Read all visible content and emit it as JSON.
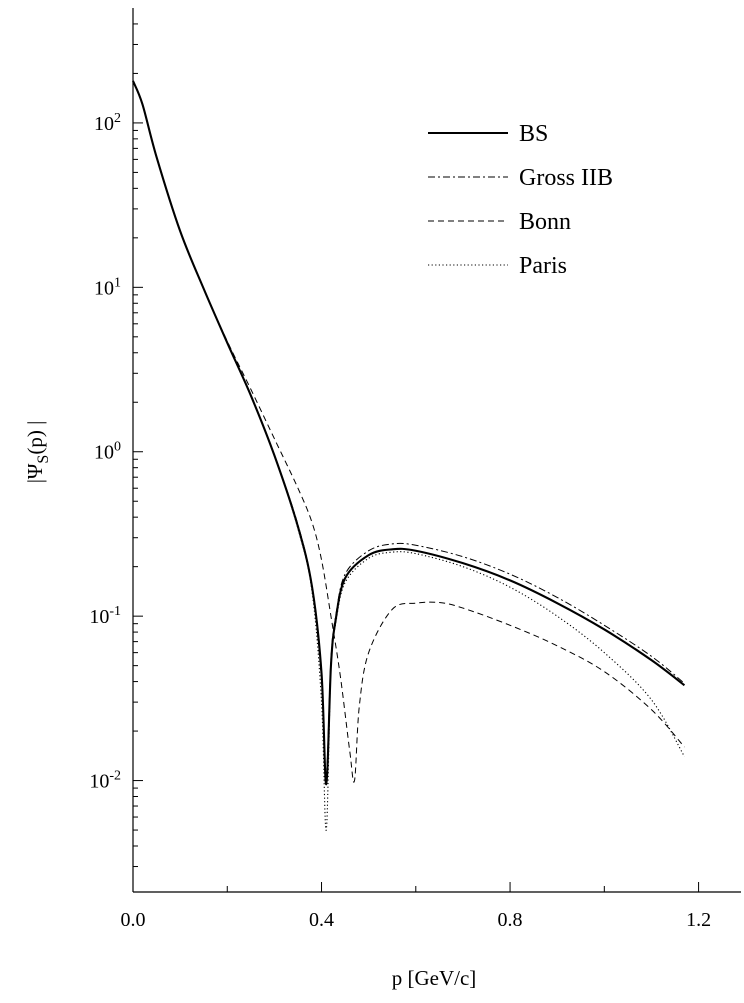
{
  "chart_data": {
    "type": "line",
    "xlabel": "p [GeV/c]",
    "ylabel": "|ΨS(p) |",
    "ylabel_main": "|Ψ",
    "ylabel_sub": "S",
    "ylabel_tail": "(p) |",
    "xscale": "linear",
    "yscale": "log",
    "xlim": [
      0.0,
      1.29
    ],
    "ylim": [
      0.0021,
      500
    ],
    "grid": false,
    "legend_position": "top-right",
    "x_ticks": [
      {
        "value": 0.0,
        "label": "0.0"
      },
      {
        "value": 0.4,
        "label": "0.4"
      },
      {
        "value": 0.8,
        "label": "0.8"
      },
      {
        "value": 1.2,
        "label": "1.2"
      }
    ],
    "y_ticks": [
      {
        "value": 100,
        "base": "10",
        "exp": "2"
      },
      {
        "value": 10,
        "base": "10",
        "exp": "1"
      },
      {
        "value": 1,
        "base": "10",
        "exp": "0"
      },
      {
        "value": 0.1,
        "base": "10",
        "exp": "-1"
      },
      {
        "value": 0.01,
        "base": "10",
        "exp": "-2"
      }
    ],
    "series": [
      {
        "name": "BS",
        "style": "solid",
        "x": [
          0.0,
          0.02,
          0.05,
          0.1,
          0.15,
          0.2,
          0.25,
          0.3,
          0.35,
          0.38,
          0.4,
          0.41,
          0.42,
          0.43,
          0.45,
          0.5,
          0.55,
          0.6,
          0.7,
          0.8,
          0.9,
          1.0,
          1.1,
          1.17
        ],
        "y": [
          180,
          130,
          62,
          22,
          9.8,
          4.6,
          2.2,
          0.95,
          0.35,
          0.15,
          0.045,
          0.0095,
          0.05,
          0.095,
          0.17,
          0.235,
          0.255,
          0.25,
          0.21,
          0.165,
          0.12,
          0.083,
          0.054,
          0.038
        ]
      },
      {
        "name": "Gross IIB",
        "style": "dashdot",
        "x": [
          0.0,
          0.02,
          0.05,
          0.1,
          0.15,
          0.2,
          0.25,
          0.3,
          0.35,
          0.38,
          0.4,
          0.41,
          0.42,
          0.43,
          0.45,
          0.5,
          0.55,
          0.6,
          0.7,
          0.8,
          0.9,
          1.0,
          1.1,
          1.17
        ],
        "y": [
          180,
          130,
          62,
          22,
          9.8,
          4.6,
          2.2,
          0.95,
          0.36,
          0.15,
          0.04,
          0.011,
          0.055,
          0.1,
          0.18,
          0.25,
          0.275,
          0.27,
          0.23,
          0.18,
          0.13,
          0.088,
          0.057,
          0.039
        ]
      },
      {
        "name": "Bonn",
        "style": "dashed",
        "x": [
          0.0,
          0.02,
          0.05,
          0.1,
          0.15,
          0.2,
          0.25,
          0.3,
          0.35,
          0.38,
          0.4,
          0.42,
          0.44,
          0.46,
          0.47,
          0.48,
          0.5,
          0.55,
          0.6,
          0.65,
          0.7,
          0.8,
          0.9,
          1.0,
          1.1,
          1.17
        ],
        "y": [
          180,
          130,
          62,
          22,
          9.8,
          4.7,
          2.4,
          1.2,
          0.6,
          0.37,
          0.22,
          0.1,
          0.043,
          0.015,
          0.01,
          0.028,
          0.06,
          0.11,
          0.12,
          0.121,
          0.112,
          0.088,
          0.066,
          0.046,
          0.027,
          0.016
        ]
      },
      {
        "name": "Paris",
        "style": "dotted",
        "x": [
          0.0,
          0.02,
          0.05,
          0.1,
          0.15,
          0.2,
          0.25,
          0.3,
          0.35,
          0.38,
          0.4,
          0.41,
          0.42,
          0.43,
          0.45,
          0.5,
          0.55,
          0.6,
          0.7,
          0.8,
          0.9,
          1.0,
          1.1,
          1.17
        ],
        "y": [
          180,
          130,
          62,
          22,
          9.8,
          4.6,
          2.2,
          0.95,
          0.34,
          0.14,
          0.03,
          0.005,
          0.05,
          0.09,
          0.16,
          0.225,
          0.245,
          0.24,
          0.2,
          0.15,
          0.1,
          0.06,
          0.031,
          0.014
        ]
      }
    ]
  }
}
